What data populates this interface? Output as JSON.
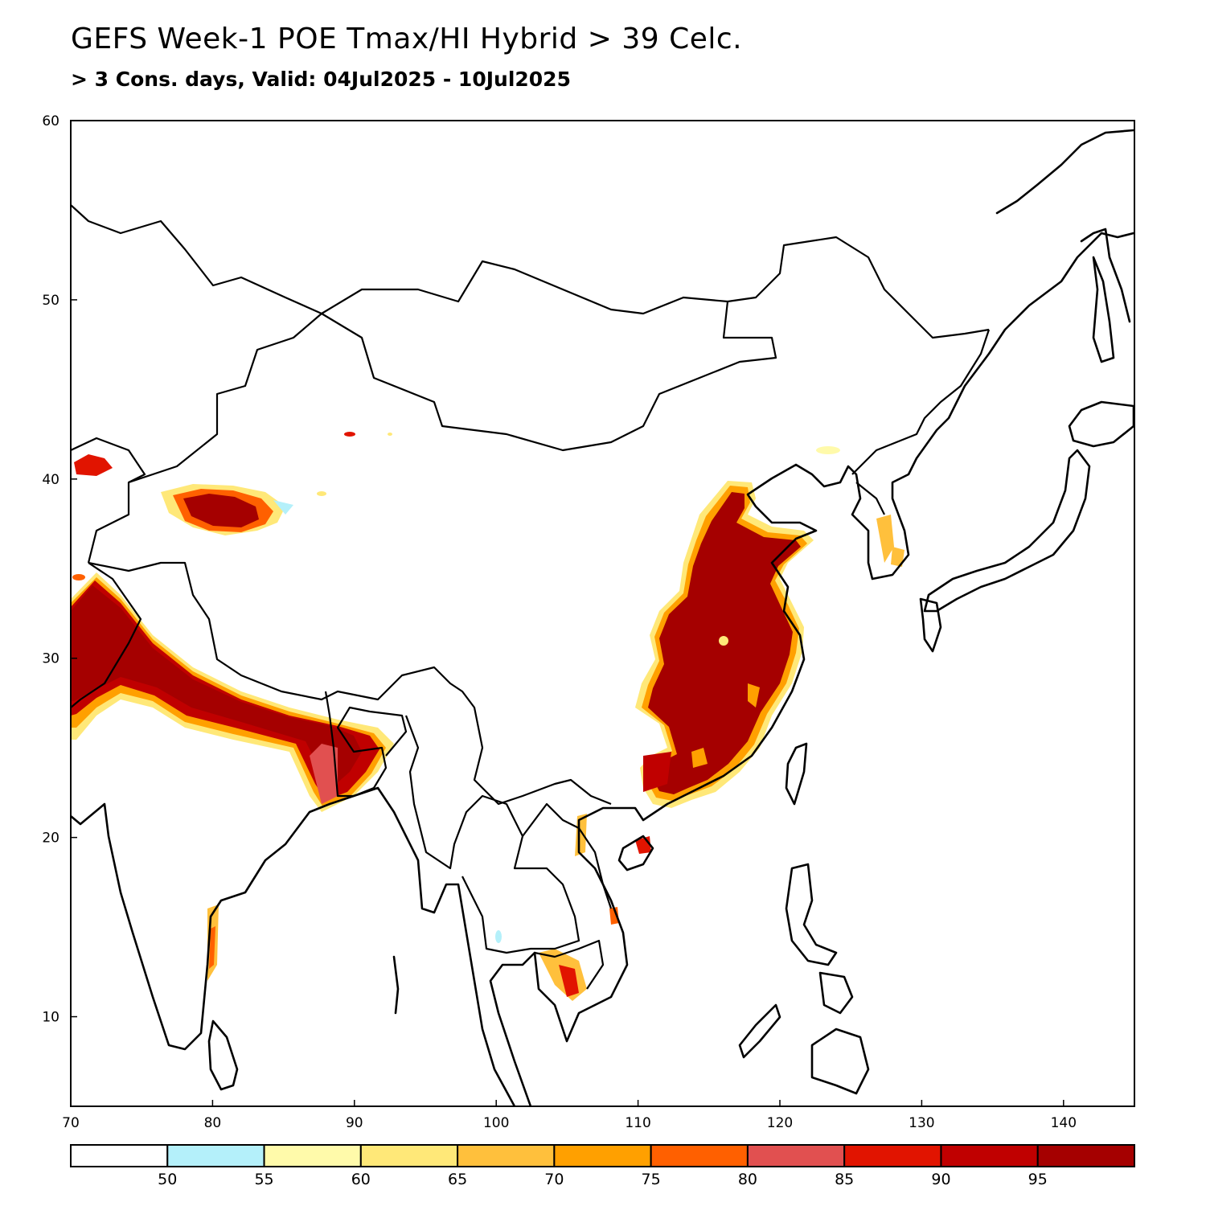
{
  "title": "GEFS Week-1 POE Tmax/HI Hybrid > 39 Celc.",
  "subtitle": "> 3 Cons. days, Valid: 04Jul2025 - 10Jul2025",
  "map": {
    "lon_range": [
      70,
      145
    ],
    "lat_range": [
      5,
      60
    ],
    "lon_ticks": [
      "70",
      "80",
      "90",
      "100",
      "110",
      "120",
      "130",
      "140"
    ],
    "lat_ticks": [
      "60",
      "50",
      "40",
      "30",
      "20",
      "10"
    ]
  },
  "colorbar": {
    "colors": [
      "#ffffff",
      "#b4f0fa",
      "#fffaaa",
      "#ffe878",
      "#ffc03c",
      "#ffa000",
      "#ff6000",
      "#e15050",
      "#e11400",
      "#c00000",
      "#a50000"
    ],
    "labels": [
      "50",
      "55",
      "60",
      "65",
      "70",
      "75",
      "80",
      "85",
      "90",
      "95"
    ]
  }
}
